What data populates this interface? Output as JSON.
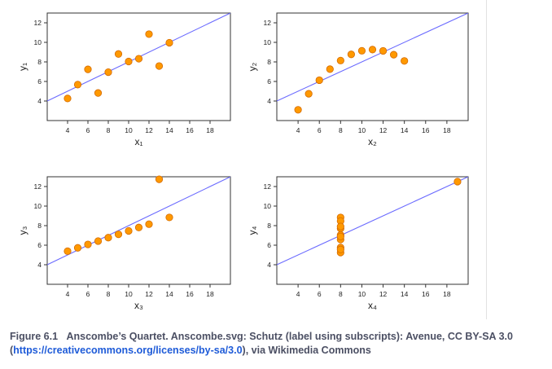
{
  "caption": {
    "figure_label": "Figure 6.1",
    "text_before_link": "Anscombe’s Quartet. Anscombe.svg: Schutz (label using subscripts): Avenue, CC BY-SA 3.0 (",
    "link": "https://creativecommons.org/licenses/by-sa/3.0",
    "text_after_link": "), via Wikimedia Commons"
  },
  "colors": {
    "point_fill": "#ff9900",
    "point_stroke": "#d46a00",
    "fit_line": "#6b6bff",
    "axis": "#333333",
    "tick_text": "#222222"
  },
  "chart_data": [
    {
      "type": "scatter",
      "xlabel": "x₁",
      "ylabel": "y₁",
      "xlim": [
        2,
        20
      ],
      "ylim": [
        2,
        13
      ],
      "xticks": [
        4,
        6,
        8,
        10,
        12,
        14,
        16,
        18
      ],
      "yticks": [
        4,
        6,
        8,
        10,
        12
      ],
      "grid": false,
      "points": [
        [
          10,
          8.04
        ],
        [
          8,
          6.95
        ],
        [
          13,
          7.58
        ],
        [
          9,
          8.81
        ],
        [
          11,
          8.33
        ],
        [
          14,
          9.96
        ],
        [
          6,
          7.24
        ],
        [
          4,
          4.26
        ],
        [
          12,
          10.84
        ],
        [
          7,
          4.82
        ],
        [
          5,
          5.68
        ]
      ],
      "fit_line": {
        "intercept": 3,
        "slope": 0.5
      }
    },
    {
      "type": "scatter",
      "xlabel": "x₂",
      "ylabel": "y₂",
      "xlim": [
        2,
        20
      ],
      "ylim": [
        2,
        13
      ],
      "xticks": [
        4,
        6,
        8,
        10,
        12,
        14,
        16,
        18
      ],
      "yticks": [
        4,
        6,
        8,
        10,
        12
      ],
      "grid": false,
      "points": [
        [
          10,
          9.14
        ],
        [
          8,
          8.14
        ],
        [
          13,
          8.74
        ],
        [
          9,
          8.77
        ],
        [
          11,
          9.26
        ],
        [
          14,
          8.1
        ],
        [
          6,
          6.13
        ],
        [
          4,
          3.1
        ],
        [
          12,
          9.13
        ],
        [
          7,
          7.26
        ],
        [
          5,
          4.74
        ]
      ],
      "fit_line": {
        "intercept": 3,
        "slope": 0.5
      }
    },
    {
      "type": "scatter",
      "xlabel": "x₃",
      "ylabel": "y₃",
      "xlim": [
        2,
        20
      ],
      "ylim": [
        2,
        13
      ],
      "xticks": [
        4,
        6,
        8,
        10,
        12,
        14,
        16,
        18
      ],
      "yticks": [
        4,
        6,
        8,
        10,
        12
      ],
      "grid": false,
      "points": [
        [
          10,
          7.46
        ],
        [
          8,
          6.77
        ],
        [
          13,
          12.74
        ],
        [
          9,
          7.11
        ],
        [
          11,
          7.81
        ],
        [
          14,
          8.84
        ],
        [
          6,
          6.08
        ],
        [
          4,
          5.39
        ],
        [
          12,
          8.15
        ],
        [
          7,
          6.42
        ],
        [
          5,
          5.73
        ]
      ],
      "fit_line": {
        "intercept": 3,
        "slope": 0.5
      }
    },
    {
      "type": "scatter",
      "xlabel": "x₄",
      "ylabel": "y₄",
      "xlim": [
        2,
        20
      ],
      "ylim": [
        2,
        13
      ],
      "xticks": [
        4,
        6,
        8,
        10,
        12,
        14,
        16,
        18
      ],
      "yticks": [
        4,
        6,
        8,
        10,
        12
      ],
      "grid": false,
      "points": [
        [
          8,
          6.58
        ],
        [
          8,
          5.76
        ],
        [
          8,
          7.71
        ],
        [
          8,
          8.84
        ],
        [
          8,
          8.47
        ],
        [
          8,
          7.04
        ],
        [
          8,
          5.25
        ],
        [
          19,
          12.5
        ],
        [
          8,
          5.56
        ],
        [
          8,
          7.91
        ],
        [
          8,
          6.89
        ]
      ],
      "fit_line": {
        "intercept": 3,
        "slope": 0.5
      }
    }
  ]
}
